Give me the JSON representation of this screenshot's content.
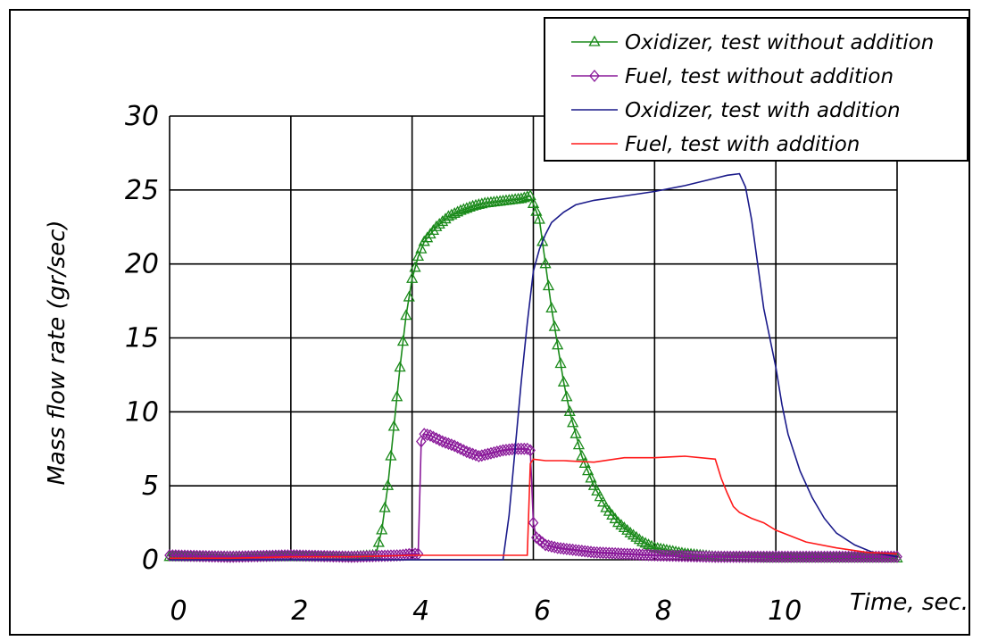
{
  "chart_data": {
    "type": "line",
    "xlabel": "Time, sec.",
    "ylabel": "Mass flow rate (gr/sec)",
    "xlim": [
      0,
      12
    ],
    "ylim": [
      0,
      30
    ],
    "xticks": [
      0,
      2,
      4,
      6,
      8,
      10
    ],
    "yticks": [
      0,
      5,
      10,
      15,
      20,
      25,
      30
    ],
    "grid": true,
    "legend_position": "top-right",
    "series": [
      {
        "name": "Oxidizer, test without addition",
        "color": "#1a8a1a",
        "marker": "triangle",
        "x": [
          0,
          1,
          2,
          3,
          3.4,
          3.5,
          3.6,
          3.7,
          3.8,
          3.9,
          4.0,
          4.1,
          4.2,
          4.4,
          4.6,
          4.8,
          5.0,
          5.2,
          5.4,
          5.6,
          5.8,
          5.95,
          6.1,
          6.2,
          6.3,
          6.4,
          6.5,
          6.6,
          6.8,
          7.0,
          7.2,
          7.4,
          7.6,
          7.8,
          8.0,
          8.5,
          9.0,
          10,
          11,
          12
        ],
        "y": [
          0.2,
          0.2,
          0.2,
          0.2,
          0.3,
          2.0,
          5.0,
          9.0,
          13.0,
          16.5,
          19.0,
          20.5,
          21.5,
          22.5,
          23.2,
          23.6,
          23.9,
          24.1,
          24.2,
          24.3,
          24.4,
          24.6,
          23.0,
          20.0,
          17.0,
          14.5,
          12.0,
          10.0,
          7.0,
          5.0,
          3.5,
          2.5,
          1.8,
          1.2,
          0.8,
          0.4,
          0.2,
          0.1,
          0.1,
          0.1
        ]
      },
      {
        "name": "Fuel, test without addition",
        "color": "#8a1a9a",
        "marker": "diamond",
        "x": [
          0,
          1,
          2,
          3,
          3.8,
          4.0,
          4.1,
          4.15,
          4.2,
          4.3,
          4.5,
          4.7,
          4.9,
          5.1,
          5.3,
          5.5,
          5.7,
          5.9,
          5.95,
          6.0,
          6.05,
          6.2,
          6.4,
          6.6,
          6.8,
          7.0,
          7.5,
          8.0,
          9.0,
          10,
          11,
          12
        ],
        "y": [
          0.3,
          0.2,
          0.3,
          0.2,
          0.3,
          0.4,
          0.4,
          8.0,
          8.5,
          8.4,
          8.0,
          7.7,
          7.3,
          7.0,
          7.2,
          7.4,
          7.5,
          7.5,
          7.4,
          2.5,
          1.5,
          1.0,
          0.8,
          0.7,
          0.6,
          0.5,
          0.4,
          0.3,
          0.2,
          0.2,
          0.2,
          0.2
        ]
      },
      {
        "name": "Oxidizer, test with addition",
        "color": "#1a1a8a",
        "marker": "none",
        "x": [
          0,
          2,
          4,
          5.5,
          5.6,
          5.7,
          5.8,
          5.9,
          6.0,
          6.1,
          6.2,
          6.3,
          6.5,
          6.7,
          7.0,
          7.5,
          8.0,
          8.5,
          9.0,
          9.2,
          9.4,
          9.5,
          9.6,
          9.7,
          9.8,
          9.9,
          10.0,
          10.1,
          10.2,
          10.4,
          10.6,
          10.8,
          11.0,
          11.3,
          11.6,
          12.0
        ],
        "y": [
          0,
          0,
          0,
          0,
          3.0,
          7.5,
          12.0,
          16.0,
          19.5,
          21.0,
          22.0,
          22.8,
          23.5,
          24.0,
          24.3,
          24.6,
          24.9,
          25.3,
          25.8,
          26.0,
          26.1,
          25.2,
          23.0,
          20.0,
          17.0,
          15.0,
          13.0,
          10.5,
          8.5,
          6.0,
          4.2,
          2.8,
          1.8,
          1.0,
          0.5,
          0.2
        ]
      },
      {
        "name": "Fuel, test with addition",
        "color": "#ff1a1a",
        "marker": "none",
        "x": [
          0,
          1,
          2,
          3,
          4,
          4.5,
          5,
          5.5,
          5.9,
          5.95,
          6.0,
          6.2,
          6.5,
          7.0,
          7.5,
          8.0,
          8.5,
          9.0,
          9.1,
          9.2,
          9.3,
          9.4,
          9.6,
          9.8,
          10.0,
          10.5,
          11.0,
          11.5,
          12.0
        ],
        "y": [
          0.1,
          0.1,
          0.2,
          0.2,
          0.3,
          0.3,
          0.3,
          0.3,
          0.3,
          6.5,
          6.8,
          6.7,
          6.7,
          6.6,
          6.9,
          6.9,
          7.0,
          6.8,
          5.5,
          4.5,
          3.6,
          3.2,
          2.8,
          2.5,
          2.0,
          1.2,
          0.8,
          0.5,
          0.4
        ]
      }
    ]
  }
}
